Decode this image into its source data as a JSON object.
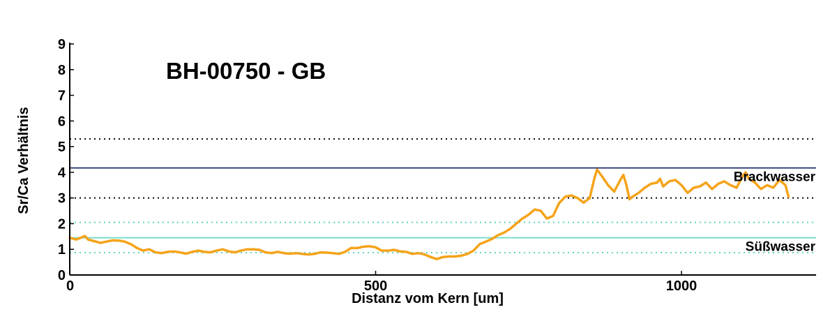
{
  "chart_data": {
    "type": "line",
    "title": "BH-00750 - GB",
    "xlabel": "Distanz vom Kern [um]",
    "ylabel": "Sr/Ca Verhältnis",
    "xlim": [
      0,
      1220
    ],
    "ylim": [
      0,
      9
    ],
    "xticks": [
      0,
      500,
      1000
    ],
    "yticks": [
      0,
      1,
      2,
      3,
      4,
      5,
      6,
      7,
      8,
      9
    ],
    "grid": false,
    "colors": {
      "series": "#f5a31a",
      "brackwasser_line": "#1f2a6b",
      "dotted_black": "#000000",
      "suesswasser_line": "#6fdcc8",
      "dotted_teal": "#5fd4c0"
    },
    "reference_lines": [
      {
        "y": 5.3,
        "style": "dotted",
        "color": "#000000"
      },
      {
        "y": 4.17,
        "style": "solid",
        "color": "#1f2a6b",
        "label": "Brackwasser"
      },
      {
        "y": 3.0,
        "style": "dotted",
        "color": "#000000"
      },
      {
        "y": 2.05,
        "style": "dotted",
        "color": "#5fd4c0"
      },
      {
        "y": 1.45,
        "style": "solid",
        "color": "#6fdcc8",
        "label": "Süßwasser"
      },
      {
        "y": 0.87,
        "style": "dotted",
        "color": "#5fd4c0"
      }
    ],
    "series": [
      {
        "x": [
          0,
          10,
          18,
          25,
          30,
          40,
          50,
          60,
          70,
          80,
          90,
          100,
          110,
          120,
          130,
          140,
          150,
          160,
          170,
          180,
          190,
          200,
          210,
          220,
          230,
          240,
          250,
          260,
          270,
          280,
          290,
          300,
          310,
          320,
          330,
          340,
          350,
          360,
          370,
          380,
          390,
          400,
          410,
          420,
          430,
          440,
          450,
          460,
          470,
          480,
          490,
          500,
          510,
          520,
          530,
          540,
          550,
          560,
          570,
          580,
          590,
          600,
          610,
          620,
          630,
          640,
          650,
          660,
          670,
          680,
          690,
          700,
          710,
          720,
          730,
          740,
          750,
          760,
          770,
          780,
          790,
          800,
          810,
          820,
          830,
          840,
          850,
          858,
          862,
          870,
          880,
          890,
          900,
          905,
          910,
          915,
          920,
          930,
          940,
          950,
          960,
          965,
          970,
          980,
          990,
          1000,
          1010,
          1020,
          1030,
          1040,
          1050,
          1060,
          1070,
          1080,
          1090,
          1100,
          1105,
          1110,
          1120,
          1130,
          1140,
          1150,
          1160,
          1170,
          1175
        ],
        "y": [
          1.45,
          1.38,
          1.45,
          1.52,
          1.38,
          1.32,
          1.25,
          1.3,
          1.35,
          1.34,
          1.3,
          1.2,
          1.05,
          0.95,
          1.0,
          0.88,
          0.85,
          0.9,
          0.92,
          0.88,
          0.83,
          0.9,
          0.95,
          0.9,
          0.88,
          0.95,
          1.0,
          0.92,
          0.88,
          0.95,
          1.0,
          1.0,
          0.98,
          0.88,
          0.85,
          0.9,
          0.85,
          0.83,
          0.85,
          0.82,
          0.8,
          0.82,
          0.88,
          0.87,
          0.85,
          0.82,
          0.9,
          1.05,
          1.05,
          1.1,
          1.12,
          1.08,
          0.95,
          0.95,
          0.98,
          0.92,
          0.9,
          0.82,
          0.85,
          0.8,
          0.7,
          0.62,
          0.7,
          0.72,
          0.72,
          0.75,
          0.82,
          0.95,
          1.2,
          1.3,
          1.4,
          1.55,
          1.65,
          1.8,
          2.0,
          2.2,
          2.35,
          2.55,
          2.5,
          2.2,
          2.3,
          2.8,
          3.05,
          3.1,
          3.0,
          2.82,
          3.0,
          3.8,
          4.1,
          3.85,
          3.5,
          3.25,
          3.7,
          3.9,
          3.5,
          2.95,
          3.05,
          3.2,
          3.4,
          3.55,
          3.6,
          3.75,
          3.45,
          3.65,
          3.7,
          3.5,
          3.2,
          3.4,
          3.45,
          3.6,
          3.35,
          3.55,
          3.65,
          3.5,
          3.4,
          3.85,
          4.0,
          3.75,
          3.6,
          3.35,
          3.5,
          3.4,
          3.7,
          3.5,
          3.05
        ]
      }
    ]
  }
}
